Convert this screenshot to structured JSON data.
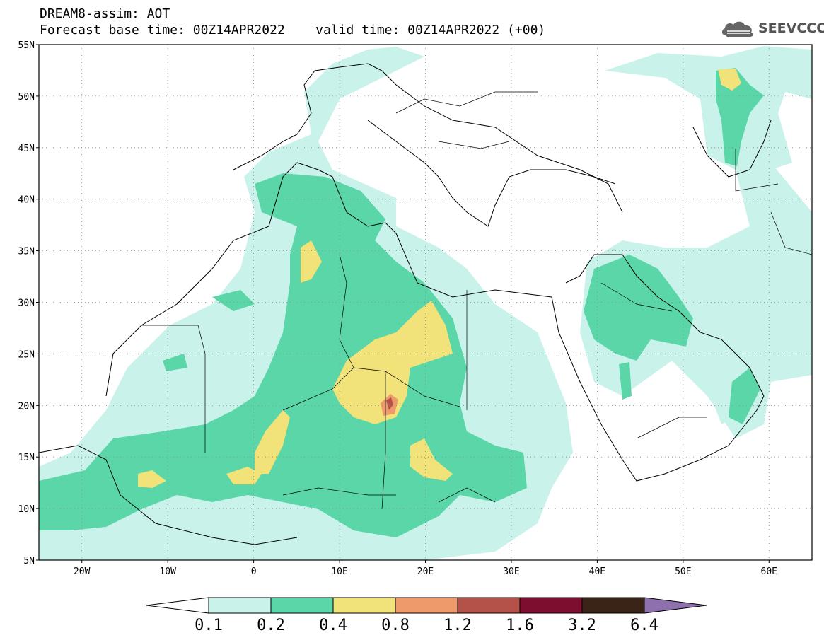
{
  "header": {
    "title_line1": "DREAM8-assim: AOT",
    "title_line2": "Forecast base time: 00Z14APR2022    valid time: 00Z14APR2022 (+00)"
  },
  "logo": {
    "text": "SEEVCCC",
    "icon": "cloud-icon"
  },
  "map": {
    "lon_range": [
      -25,
      65
    ],
    "lat_range": [
      5,
      55
    ],
    "grid": "dotted",
    "lat_labels": [
      {
        "lat": 55,
        "label": "55N"
      },
      {
        "lat": 50,
        "label": "50N"
      },
      {
        "lat": 45,
        "label": "45N"
      },
      {
        "lat": 40,
        "label": "40N"
      },
      {
        "lat": 35,
        "label": "35N"
      },
      {
        "lat": 30,
        "label": "30N"
      },
      {
        "lat": 25,
        "label": "25N"
      },
      {
        "lat": 20,
        "label": "20N"
      },
      {
        "lat": 15,
        "label": "15N"
      },
      {
        "lat": 10,
        "label": "10N"
      },
      {
        "lat": 5,
        "label": "5N"
      }
    ],
    "lon_labels": [
      {
        "lon": -20,
        "label": "20W"
      },
      {
        "lon": -10,
        "label": "10W"
      },
      {
        "lon": 0,
        "label": "0"
      },
      {
        "lon": 10,
        "label": "10E"
      },
      {
        "lon": 20,
        "label": "20E"
      },
      {
        "lon": 30,
        "label": "30E"
      },
      {
        "lon": 40,
        "label": "40E"
      },
      {
        "lon": 50,
        "label": "50E"
      },
      {
        "lon": 60,
        "label": "60E"
      }
    ]
  },
  "colorbar": {
    "labels": [
      "0.1",
      "0.2",
      "0.4",
      "0.8",
      "1.2",
      "1.6",
      "3.2",
      "6.4"
    ],
    "colors": [
      "#c8f2ea",
      "#5ad6a8",
      "#f1e27a",
      "#ee9a6a",
      "#b4524a",
      "#7e0e30",
      "#3a2418",
      "#8d70ad"
    ],
    "under_color": "#ffffff"
  },
  "colors": {
    "level1": "#c8f2ea",
    "level2": "#5ad6a8",
    "level3": "#f1e27a",
    "level4": "#ee9a6a",
    "level5": "#b4524a"
  }
}
